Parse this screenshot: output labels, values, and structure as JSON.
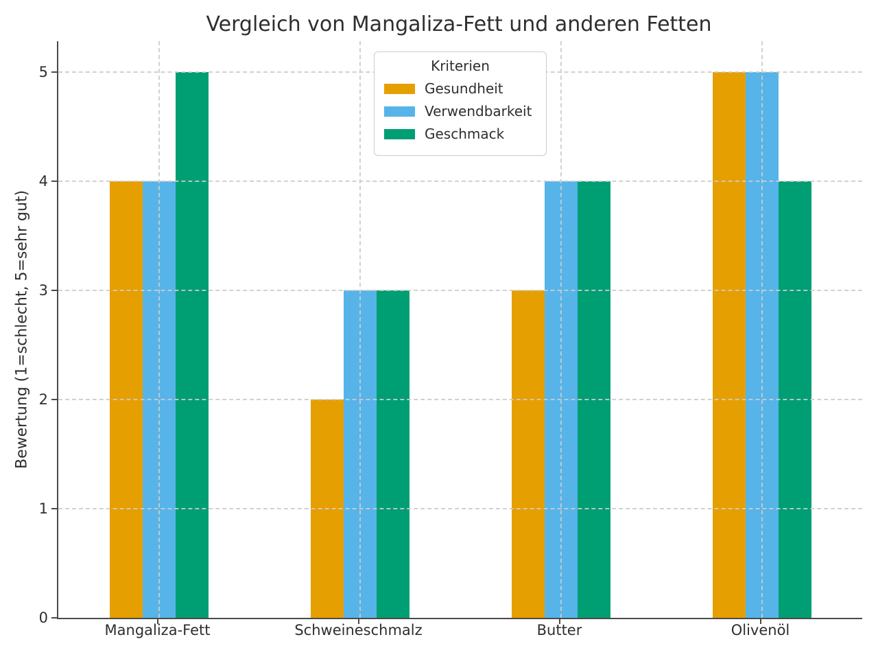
{
  "chart_data": {
    "type": "bar",
    "title": "Vergleich von Mangaliza-Fett und anderen Fetten",
    "ylabel": "Bewertung (1=schlecht, 5=sehr gut)",
    "xlabel": "",
    "categories": [
      "Mangaliza-Fett",
      "Schweineschmalz",
      "Butter",
      "Olivenöl"
    ],
    "series": [
      {
        "name": "Gesundheit",
        "color": "#E69F00",
        "values": [
          4,
          2,
          3,
          5
        ]
      },
      {
        "name": "Verwendbarkeit",
        "color": "#56B4E9",
        "values": [
          4,
          3,
          4,
          5
        ]
      },
      {
        "name": "Geschmack",
        "color": "#009E73",
        "values": [
          5,
          3,
          4,
          4
        ]
      }
    ],
    "legend": {
      "title": "Kriterien",
      "position": "upper center"
    },
    "yticks": [
      0,
      1,
      2,
      3,
      4,
      5
    ],
    "ylim": [
      0,
      5.28
    ],
    "grid": true,
    "grid_style": "dashed"
  },
  "colors": {
    "background": "#ffffff",
    "text": "#2e2e2e",
    "spine": "#4a4a4a",
    "grid": "#cccccc",
    "legend_border": "#cccccc"
  }
}
